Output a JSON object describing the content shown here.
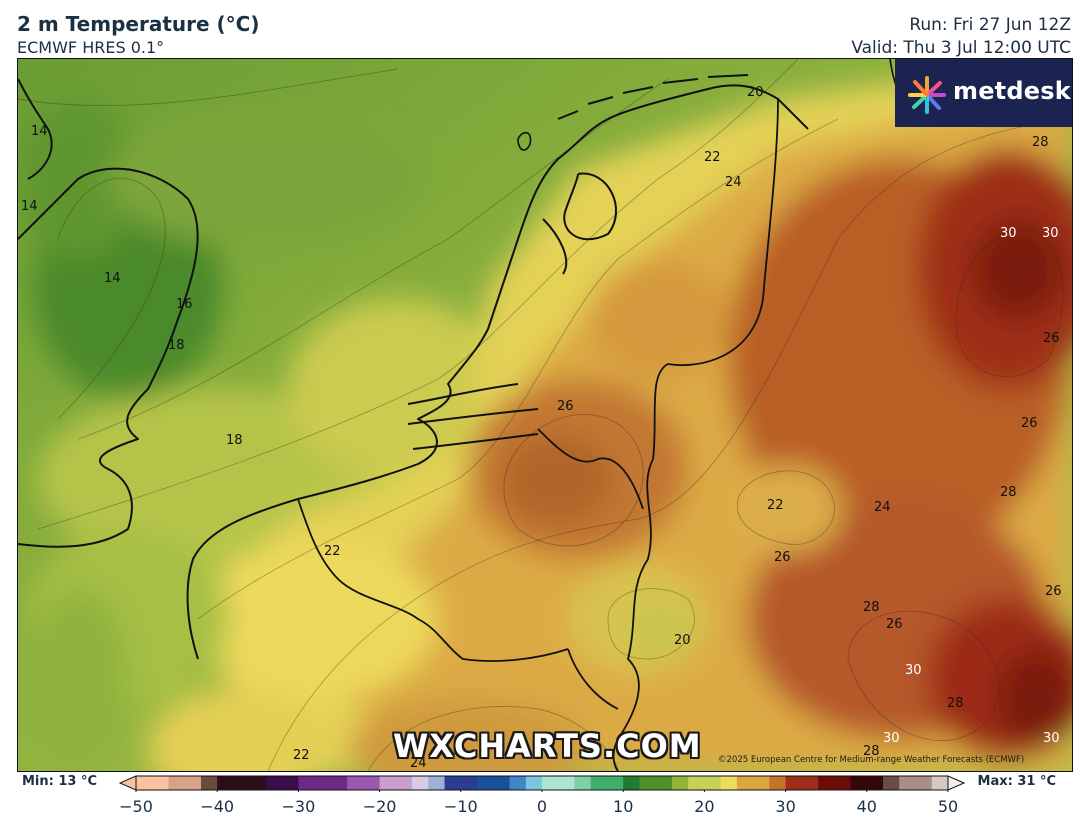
{
  "header": {
    "title": "2 m Temperature (°C)",
    "model": "ECMWF HRES 0.1°",
    "run": "Run: Fri 27 Jun 12Z",
    "valid": "Valid: Thu 3 Jul 12:00 UTC"
  },
  "logo": {
    "text": "metdesk",
    "icon": "metdesk-burst-icon"
  },
  "watermark": "WXCHARTS.COM",
  "copyright": "©2025 European Centre for Medium-range Weather Forecasts (ECMWF)",
  "colorbar": {
    "min_label": "Min: 13 °C",
    "max_label": "Max: 31 °C",
    "range": [
      -50,
      50
    ],
    "ticks": [
      "−50",
      "−40",
      "−30",
      "−20",
      "−10",
      "0",
      "10",
      "20",
      "30",
      "40",
      "50"
    ],
    "stops": [
      {
        "t": -50,
        "c": "#f9c3a2"
      },
      {
        "t": -46,
        "c": "#d6a38a"
      },
      {
        "t": -42,
        "c": "#6d4a3c"
      },
      {
        "t": -40,
        "c": "#2a0f1b"
      },
      {
        "t": -35,
        "c": "#3c0d4c"
      },
      {
        "t": -30,
        "c": "#6d2a85"
      },
      {
        "t": -25,
        "c": "#9c58ad"
      },
      {
        "t": -20,
        "c": "#c99dcf"
      },
      {
        "t": -17,
        "c": "#d8cbe3"
      },
      {
        "t": -14,
        "c": "#9eb0d6"
      },
      {
        "t": -12,
        "c": "#2b3d8f"
      },
      {
        "t": -9,
        "c": "#1b4f9a"
      },
      {
        "t": -5,
        "c": "#3f86c7"
      },
      {
        "t": -2,
        "c": "#79c6dd"
      },
      {
        "t": 0,
        "c": "#aee3cf"
      },
      {
        "t": 3,
        "c": "#7ccfa6"
      },
      {
        "t": 6,
        "c": "#3fae6b"
      },
      {
        "t": 9,
        "c": "#1e7b30"
      },
      {
        "t": 12,
        "c": "#4e8f2a"
      },
      {
        "t": 15,
        "c": "#8fb437"
      },
      {
        "t": 18,
        "c": "#c9d058"
      },
      {
        "t": 21,
        "c": "#ebdd5a"
      },
      {
        "t": 24,
        "c": "#d9a63f"
      },
      {
        "t": 27,
        "c": "#c2742a"
      },
      {
        "t": 30,
        "c": "#9e2d19"
      },
      {
        "t": 34,
        "c": "#6d0d0a"
      },
      {
        "t": 38,
        "c": "#35060a"
      },
      {
        "t": 41,
        "c": "#6a4c46"
      },
      {
        "t": 44,
        "c": "#a88f86"
      },
      {
        "t": 47,
        "c": "#d6c9c3"
      },
      {
        "t": 50,
        "c": "#f4efee"
      }
    ]
  },
  "map": {
    "contour_labels": [
      "14",
      "14",
      "14",
      "16",
      "18",
      "18",
      "20",
      "22",
      "24",
      "28",
      "30",
      "30",
      "26",
      "26",
      "26",
      "28",
      "22",
      "24",
      "26",
      "28",
      "26",
      "26",
      "20",
      "22",
      "30",
      "28",
      "30",
      "28",
      "30",
      "24",
      "22"
    ],
    "colors": {
      "sea_cool": "#4d8a2c",
      "sea_mild": "#7fa63b",
      "coast_warm": "#c4c84e",
      "land_yellow": "#e6d352",
      "land_orange": "#d39a3c",
      "land_brown": "#b96b2c",
      "land_red": "#9c3a1c",
      "land_darkred": "#7a1e12"
    }
  }
}
